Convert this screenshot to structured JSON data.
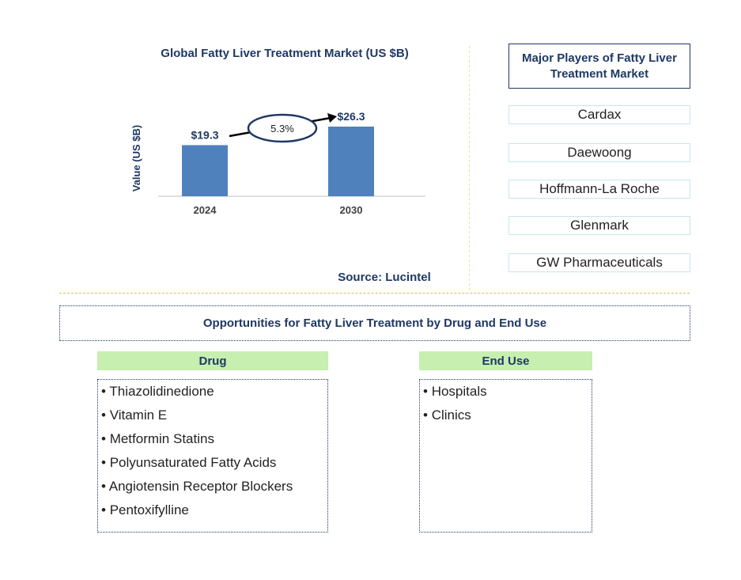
{
  "chart_data": {
    "type": "bar",
    "title": "Global Fatty Liver Treatment Market (US $B)",
    "y_label": "Value (US $B)",
    "categories": [
      "2024",
      "2030"
    ],
    "values": [
      19.3,
      26.3
    ],
    "value_labels": [
      "$19.3",
      "$26.3"
    ],
    "color": "#4f81bd",
    "annotation": "5.3%",
    "source": "Source: Lucintel"
  },
  "players": {
    "title": "Major Players of Fatty Liver Treatment Market",
    "items": [
      "Cardax",
      "Daewoong",
      "Hoffmann-La Roche",
      "Glenmark",
      "GW Pharmaceuticals"
    ]
  },
  "opportunities": {
    "title": "Opportunities for Fatty Liver Treatment by Drug and End Use",
    "segments": [
      {
        "header": "Drug",
        "items": [
          "Thiazolidinedione",
          "Vitamin E",
          "Metformin Statins",
          "Polyunsaturated Fatty Acids",
          "Angiotensin Receptor Blockers",
          "Pentoxifylline"
        ]
      },
      {
        "header": "End Use",
        "items": [
          "Hospitals",
          "Clinics"
        ]
      }
    ]
  }
}
